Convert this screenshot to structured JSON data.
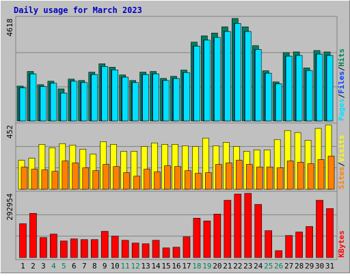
{
  "chart_data": [
    {
      "type": "bar",
      "title": "Daily usage for March 2023",
      "ylim": [
        0,
        4618
      ],
      "yticks": [
        4618
      ],
      "legend_separator": "/",
      "series": [
        {
          "name": "Hits",
          "color": "#00805c",
          "values": [
            1571,
            2230,
            1634,
            1791,
            1445,
            1885,
            1822,
            2199,
            2576,
            2419,
            2073,
            1822,
            2199,
            2230,
            1916,
            2011,
            2293,
            3550,
            3833,
            3958,
            4241,
            4618,
            4241,
            3393,
            2262,
            1759,
            3079,
            3110,
            2388,
            3173,
            3110
          ]
        },
        {
          "name": "Files",
          "color": "#0040ff",
          "values": [
            1490,
            2120,
            1550,
            1700,
            1257,
            1790,
            1730,
            2090,
            2450,
            2300,
            1970,
            1730,
            2090,
            2120,
            1820,
            1910,
            2180,
            3370,
            3640,
            3760,
            4030,
            4390,
            4030,
            3220,
            2150,
            1670,
            2920,
            2950,
            2270,
            3010,
            2950
          ]
        },
        {
          "name": "Pages",
          "color": "#00e0ff",
          "values": [
            1490,
            2120,
            1550,
            1700,
            1257,
            1790,
            1730,
            2090,
            2450,
            2300,
            1970,
            1730,
            2090,
            2120,
            1820,
            1910,
            2180,
            3370,
            3640,
            3760,
            4030,
            4390,
            4030,
            3220,
            2150,
            1670,
            2920,
            2950,
            2270,
            3010,
            2950
          ]
        }
      ]
    },
    {
      "type": "bar",
      "ylim": [
        0,
        452
      ],
      "yticks": [
        452
      ],
      "legend_separator": "/",
      "series": [
        {
          "name": "Visits",
          "color": "#ffff00",
          "values": [
            204,
            219,
            316,
            292,
            321,
            311,
            282,
            248,
            335,
            316,
            267,
            267,
            301,
            326,
            316,
            316,
            306,
            301,
            360,
            306,
            330,
            301,
            267,
            277,
            277,
            350,
            413,
            399,
            345,
            428,
            452
          ]
        },
        {
          "name": "Sites",
          "color": "#ff8000",
          "values": [
            156,
            141,
            136,
            126,
            199,
            185,
            151,
            131,
            175,
            160,
            117,
            92,
            141,
            122,
            165,
            160,
            131,
            112,
            117,
            175,
            185,
            204,
            175,
            156,
            156,
            151,
            199,
            190,
            180,
            209,
            233
          ]
        }
      ]
    },
    {
      "type": "bar",
      "ylim": [
        0,
        292954
      ],
      "yticks": [
        292954
      ],
      "categories": [
        "1",
        "2",
        "3",
        "4",
        "5",
        "6",
        "7",
        "8",
        "9",
        "10",
        "11",
        "12",
        "13",
        "14",
        "15",
        "16",
        "17",
        "18",
        "19",
        "20",
        "21",
        "22",
        "23",
        "24",
        "25",
        "26",
        "27",
        "28",
        "29",
        "30",
        "31"
      ],
      "category_colors": [
        "#000000",
        "#000000",
        "#000000",
        "#00805c",
        "#00805c",
        "#000000",
        "#000000",
        "#000000",
        "#000000",
        "#000000",
        "#00805c",
        "#00805c",
        "#000000",
        "#000000",
        "#000000",
        "#000000",
        "#000000",
        "#00805c",
        "#00805c",
        "#000000",
        "#000000",
        "#000000",
        "#000000",
        "#000000",
        "#00805c",
        "#00805c",
        "#000000",
        "#000000",
        "#000000",
        "#000000",
        "#000000"
      ],
      "series": [
        {
          "name": "KBytes",
          "color": "#ff0000",
          "values": [
            154352,
            201604,
            91351,
            107102,
            75602,
            85052,
            81902,
            81902,
            119702,
            97652,
            78752,
            66152,
            63002,
            78752,
            44101,
            47251,
            94501,
            179553,
            166953,
            198454,
            261455,
            289804,
            292954,
            242554,
            122852,
            31501,
            100802,
            116552,
            141752,
            261455,
            223653
          ]
        }
      ]
    }
  ]
}
